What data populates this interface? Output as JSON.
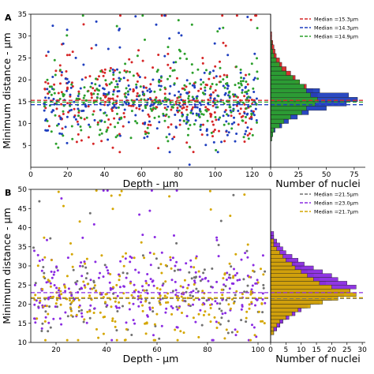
{
  "chart_data": [
    {
      "type": "scatter",
      "panel": "A",
      "xlabel": "Depth - µm",
      "ylabel": "Minimum distance - µm",
      "xlim": [
        0,
        130
      ],
      "ylim": [
        0,
        35
      ],
      "xticks": [
        0,
        20,
        40,
        60,
        80,
        100,
        120
      ],
      "yticks": [
        5,
        10,
        15,
        20,
        25,
        30,
        35
      ],
      "xrange_points": [
        7,
        123
      ],
      "series": [
        {
          "color": "#d62728",
          "median": 15.3,
          "spread": 4.5,
          "count": 300
        },
        {
          "color": "#1f3fbf",
          "median": 14.3,
          "spread": 3.8,
          "count": 300
        },
        {
          "color": "#2ca02c",
          "median": 14.9,
          "spread": 4.2,
          "count": 300
        }
      ],
      "histogram": {
        "xlabel": "Number of nuclei",
        "xlim": [
          0,
          85
        ],
        "xticks": [
          0,
          25,
          50,
          75
        ],
        "legend": [
          "Median =15.3µm",
          "Median =14.3µm",
          "Median =14.9µm"
        ],
        "bin_width": 1,
        "bins_start": 5,
        "counts": [
          [
            0,
            0,
            1,
            2,
            4,
            8,
            14,
            22,
            30,
            38,
            40,
            42,
            38,
            32,
            26,
            22,
            18,
            14,
            10,
            8,
            5,
            4,
            3,
            2,
            1,
            1,
            0,
            0,
            0,
            0
          ],
          [
            0,
            1,
            2,
            4,
            10,
            16,
            24,
            34,
            50,
            68,
            78,
            70,
            44,
            30,
            22,
            18,
            12,
            8,
            4,
            3,
            2,
            1,
            1,
            0,
            0,
            0,
            0,
            0,
            0,
            0
          ],
          [
            0,
            1,
            2,
            3,
            8,
            12,
            18,
            28,
            32,
            40,
            42,
            36,
            32,
            30,
            26,
            20,
            14,
            10,
            8,
            5,
            3,
            2,
            1,
            1,
            0,
            0,
            0,
            0,
            0,
            0
          ]
        ]
      }
    },
    {
      "type": "scatter",
      "panel": "B",
      "xlabel": "Depth - µm",
      "ylabel": "Minimum distance - µm",
      "xlim": [
        10,
        105
      ],
      "ylim": [
        10,
        50
      ],
      "xticks": [
        20,
        40,
        60,
        80,
        100
      ],
      "yticks": [
        10,
        15,
        20,
        25,
        30,
        35,
        40,
        45,
        50
      ],
      "xrange_points": [
        11,
        103
      ],
      "series": [
        {
          "color": "#707070",
          "median": 21.5,
          "spread": 5.0,
          "count": 130
        },
        {
          "color": "#8a2be2",
          "median": 23.0,
          "spread": 5.5,
          "count": 260
        },
        {
          "color": "#d4a600",
          "median": 21.7,
          "spread": 5.5,
          "count": 230
        }
      ],
      "histogram": {
        "xlabel": "Number of nuclei",
        "xlim": [
          0,
          31
        ],
        "xticks": [
          0,
          5,
          10,
          15,
          20,
          25,
          30
        ],
        "legend": [
          "Median =21.5µm",
          "Median =23.0µm",
          "Median =21.7µm"
        ],
        "bin_width": 1,
        "bins_start": 12,
        "counts": [
          [
            1,
            2,
            3,
            4,
            5,
            7,
            9,
            11,
            14,
            16,
            20,
            22,
            20,
            18,
            16,
            14,
            12,
            10,
            8,
            6,
            4,
            3,
            2,
            2,
            1,
            1,
            0,
            0,
            0,
            0
          ],
          [
            1,
            2,
            3,
            4,
            6,
            8,
            10,
            12,
            16,
            20,
            24,
            26,
            28,
            25,
            22,
            20,
            17,
            14,
            11,
            9,
            7,
            5,
            4,
            3,
            2,
            1,
            1,
            0,
            0,
            0
          ],
          [
            1,
            1,
            2,
            3,
            5,
            7,
            9,
            13,
            17,
            22,
            28,
            26,
            20,
            16,
            14,
            12,
            10,
            8,
            7,
            5,
            4,
            3,
            2,
            1,
            1,
            0,
            0,
            0,
            0,
            0
          ]
        ]
      }
    }
  ]
}
